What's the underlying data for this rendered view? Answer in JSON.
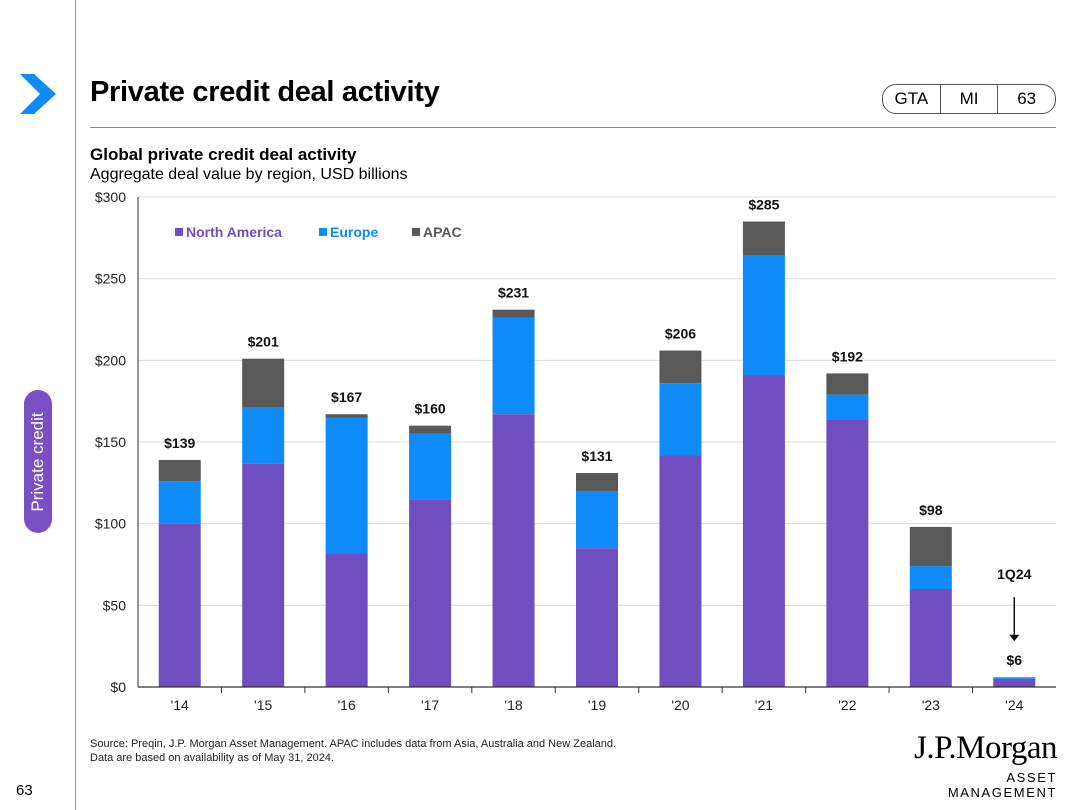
{
  "header": {
    "title": "Private credit deal activity",
    "badges": [
      "GTA",
      "MI",
      "63"
    ]
  },
  "sidebar": {
    "section_label": "Private credit",
    "page_number": "63"
  },
  "chart_title": "Global private credit deal activity",
  "chart_subtitle": "Aggregate deal value by region, USD billions",
  "chart_data": {
    "type": "bar",
    "stacked": true,
    "title": "Global private credit deal activity",
    "subtitle": "Aggregate deal value by region, USD billions",
    "categories": [
      "'14",
      "'15",
      "'16",
      "'17",
      "'18",
      "'19",
      "'20",
      "'21",
      "'22",
      "'23",
      "'24"
    ],
    "series": [
      {
        "name": "North America",
        "color": "#6f4ec0",
        "values": [
          100,
          137,
          82,
          115,
          167,
          85,
          142,
          191,
          164,
          60,
          5
        ]
      },
      {
        "name": "Europe",
        "color": "#0f8bf7",
        "values": [
          26,
          34,
          83,
          40,
          59,
          35,
          44,
          73,
          15,
          14,
          0.7
        ]
      },
      {
        "name": "APAC",
        "color": "#595959",
        "values": [
          13,
          30,
          2,
          5,
          5,
          11,
          20,
          21,
          13,
          24,
          0.3
        ]
      }
    ],
    "totals": [
      "$139",
      "$201",
      "$167",
      "$160",
      "$231",
      "$131",
      "$206",
      "$285",
      "$192",
      "$98",
      "$6"
    ],
    "ylim": [
      0,
      300
    ],
    "yticks": [
      0,
      50,
      100,
      150,
      200,
      250,
      300
    ],
    "ytick_labels": [
      "$0",
      "$50",
      "$100",
      "$150",
      "$200",
      "$250",
      "$300"
    ],
    "xlabel": "",
    "ylabel": "",
    "legend_position": "top-left",
    "gridlines": true,
    "annotation": {
      "text": "1Q24",
      "category": "'24"
    }
  },
  "footer": {
    "source_line1": "Source: Preqin, J.P. Morgan Asset Management. APAC includes data from Asia, Australia and New Zealand.",
    "source_line2": "Data are based on availability as of May 31, 2024.",
    "logo_line1": "J.P.Morgan",
    "logo_line2": "ASSET MANAGEMENT"
  },
  "colors": {
    "accent": "#7b4fc4",
    "chevron": "#0f8bf7"
  }
}
